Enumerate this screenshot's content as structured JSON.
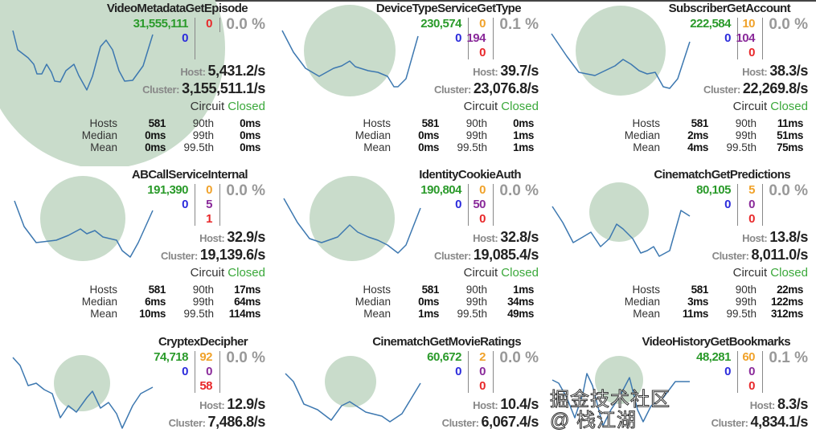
{
  "colors": {
    "success": "#2a9a2a",
    "short_circuited": "#2b2bdc",
    "bad_request": "#f0a22a",
    "timeout": "#8a2a9a",
    "failure": "#e8282a",
    "circle": "#c9dccb",
    "sparkline": "#3d78b0"
  },
  "labels": {
    "host": "Host:",
    "cluster": "Cluster:",
    "circuit": "Circuit",
    "hosts": "Hosts",
    "median": "Median",
    "mean": "Mean",
    "p90": "90th",
    "p99": "99th",
    "p995": "99.5th"
  },
  "panels": [
    {
      "name": "VideoMetadataGetEpisode",
      "success": "31,555,111",
      "short": "0",
      "bad": "",
      "timeout": "",
      "failure": "0",
      "error_pct": "0.0 %",
      "host_rate": "5,431.2/s",
      "cluster_rate": "3,155,511.1/s",
      "circuit": "Closed",
      "hosts": "581",
      "median": "0ms",
      "mean": "0ms",
      "p90": "0ms",
      "p99": "0ms",
      "p995": "0ms"
    },
    {
      "name": "DeviceTypeServiceGetType",
      "success": "230,574",
      "short": "0",
      "bad": "0",
      "timeout": "194",
      "failure": "0",
      "error_pct": "0.1 %",
      "host_rate": "39.7/s",
      "cluster_rate": "23,076.8/s",
      "circuit": "Closed",
      "hosts": "581",
      "median": "0ms",
      "mean": "0ms",
      "p90": "0ms",
      "p99": "1ms",
      "p995": "1ms"
    },
    {
      "name": "SubscriberGetAccount",
      "success": "222,584",
      "short": "0",
      "bad": "10",
      "timeout": "104",
      "failure": "0",
      "error_pct": "0.0 %",
      "host_rate": "38.3/s",
      "cluster_rate": "22,269.8/s",
      "circuit": "Closed",
      "hosts": "581",
      "median": "2ms",
      "mean": "4ms",
      "p90": "11ms",
      "p99": "51ms",
      "p995": "75ms"
    },
    {
      "name": "ABCallServiceInternal",
      "success": "191,390",
      "short": "0",
      "bad": "0",
      "timeout": "5",
      "failure": "1",
      "error_pct": "0.0 %",
      "host_rate": "32.9/s",
      "cluster_rate": "19,139.6/s",
      "circuit": "Closed",
      "hosts": "581",
      "median": "6ms",
      "mean": "10ms",
      "p90": "17ms",
      "p99": "64ms",
      "p995": "114ms"
    },
    {
      "name": "IdentityCookieAuth",
      "success": "190,804",
      "short": "0",
      "bad": "0",
      "timeout": "50",
      "failure": "0",
      "error_pct": "0.0 %",
      "host_rate": "32.8/s",
      "cluster_rate": "19,085.4/s",
      "circuit": "Closed",
      "hosts": "581",
      "median": "0ms",
      "mean": "1ms",
      "p90": "1ms",
      "p99": "34ms",
      "p995": "49ms"
    },
    {
      "name": "CinematchGetPredictions",
      "success": "80,105",
      "short": "0",
      "bad": "5",
      "timeout": "0",
      "failure": "0",
      "error_pct": "0.0 %",
      "host_rate": "13.8/s",
      "cluster_rate": "8,011.0/s",
      "circuit": "Closed",
      "hosts": "581",
      "median": "3ms",
      "mean": "11ms",
      "p90": "22ms",
      "p99": "122ms",
      "p995": "312ms"
    },
    {
      "name": "CryptexDecipher",
      "success": "74,718",
      "short": "0",
      "bad": "92",
      "timeout": "0",
      "failure": "58",
      "error_pct": "0.0 %",
      "host_rate": "12.9/s",
      "cluster_rate": "7,486.8/s"
    },
    {
      "name": "CinematchGetMovieRatings",
      "success": "60,672",
      "short": "0",
      "bad": "2",
      "timeout": "0",
      "failure": "0",
      "error_pct": "0.0 %",
      "host_rate": "10.4/s",
      "cluster_rate": "6,067.4/s"
    },
    {
      "name": "VideoHistoryGetBookmarks",
      "success": "48,281",
      "short": "0",
      "bad": "60",
      "timeout": "0",
      "failure": "0",
      "error_pct": "0.1 %",
      "host_rate": "8.3/s",
      "cluster_rate": "4,834.1/s"
    }
  ],
  "watermark": "掘金技术社区 @ 栈江湖"
}
